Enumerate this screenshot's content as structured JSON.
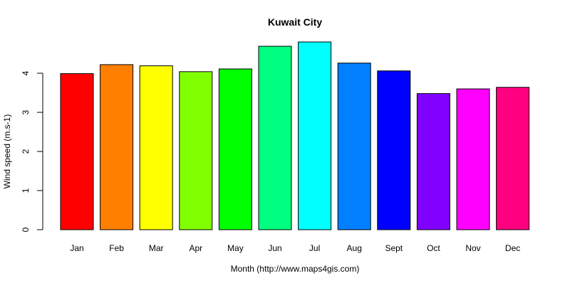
{
  "chart_data": {
    "type": "bar",
    "title": "Kuwait City",
    "xlabel": "Month (http://www.maps4gis.com)",
    "ylabel": "Wind speed (m.s-1)",
    "categories": [
      "Jan",
      "Feb",
      "Mar",
      "Apr",
      "May",
      "Jun",
      "Jul",
      "Aug",
      "Sept",
      "Oct",
      "Nov",
      "Dec"
    ],
    "values": [
      3.99,
      4.22,
      4.19,
      4.04,
      4.11,
      4.69,
      4.8,
      4.26,
      4.06,
      3.48,
      3.6,
      3.64
    ],
    "colors": [
      "#FF0000",
      "#FF8000",
      "#FFFF00",
      "#80FF00",
      "#00FF00",
      "#00FF80",
      "#00FFFF",
      "#0080FF",
      "#0000FF",
      "#8000FF",
      "#FF00FF",
      "#FF0080"
    ],
    "ylim": [
      0,
      4.8
    ],
    "yticks": [
      "0",
      "1",
      "2",
      "3",
      "4"
    ],
    "grid": false,
    "legend": "none"
  }
}
